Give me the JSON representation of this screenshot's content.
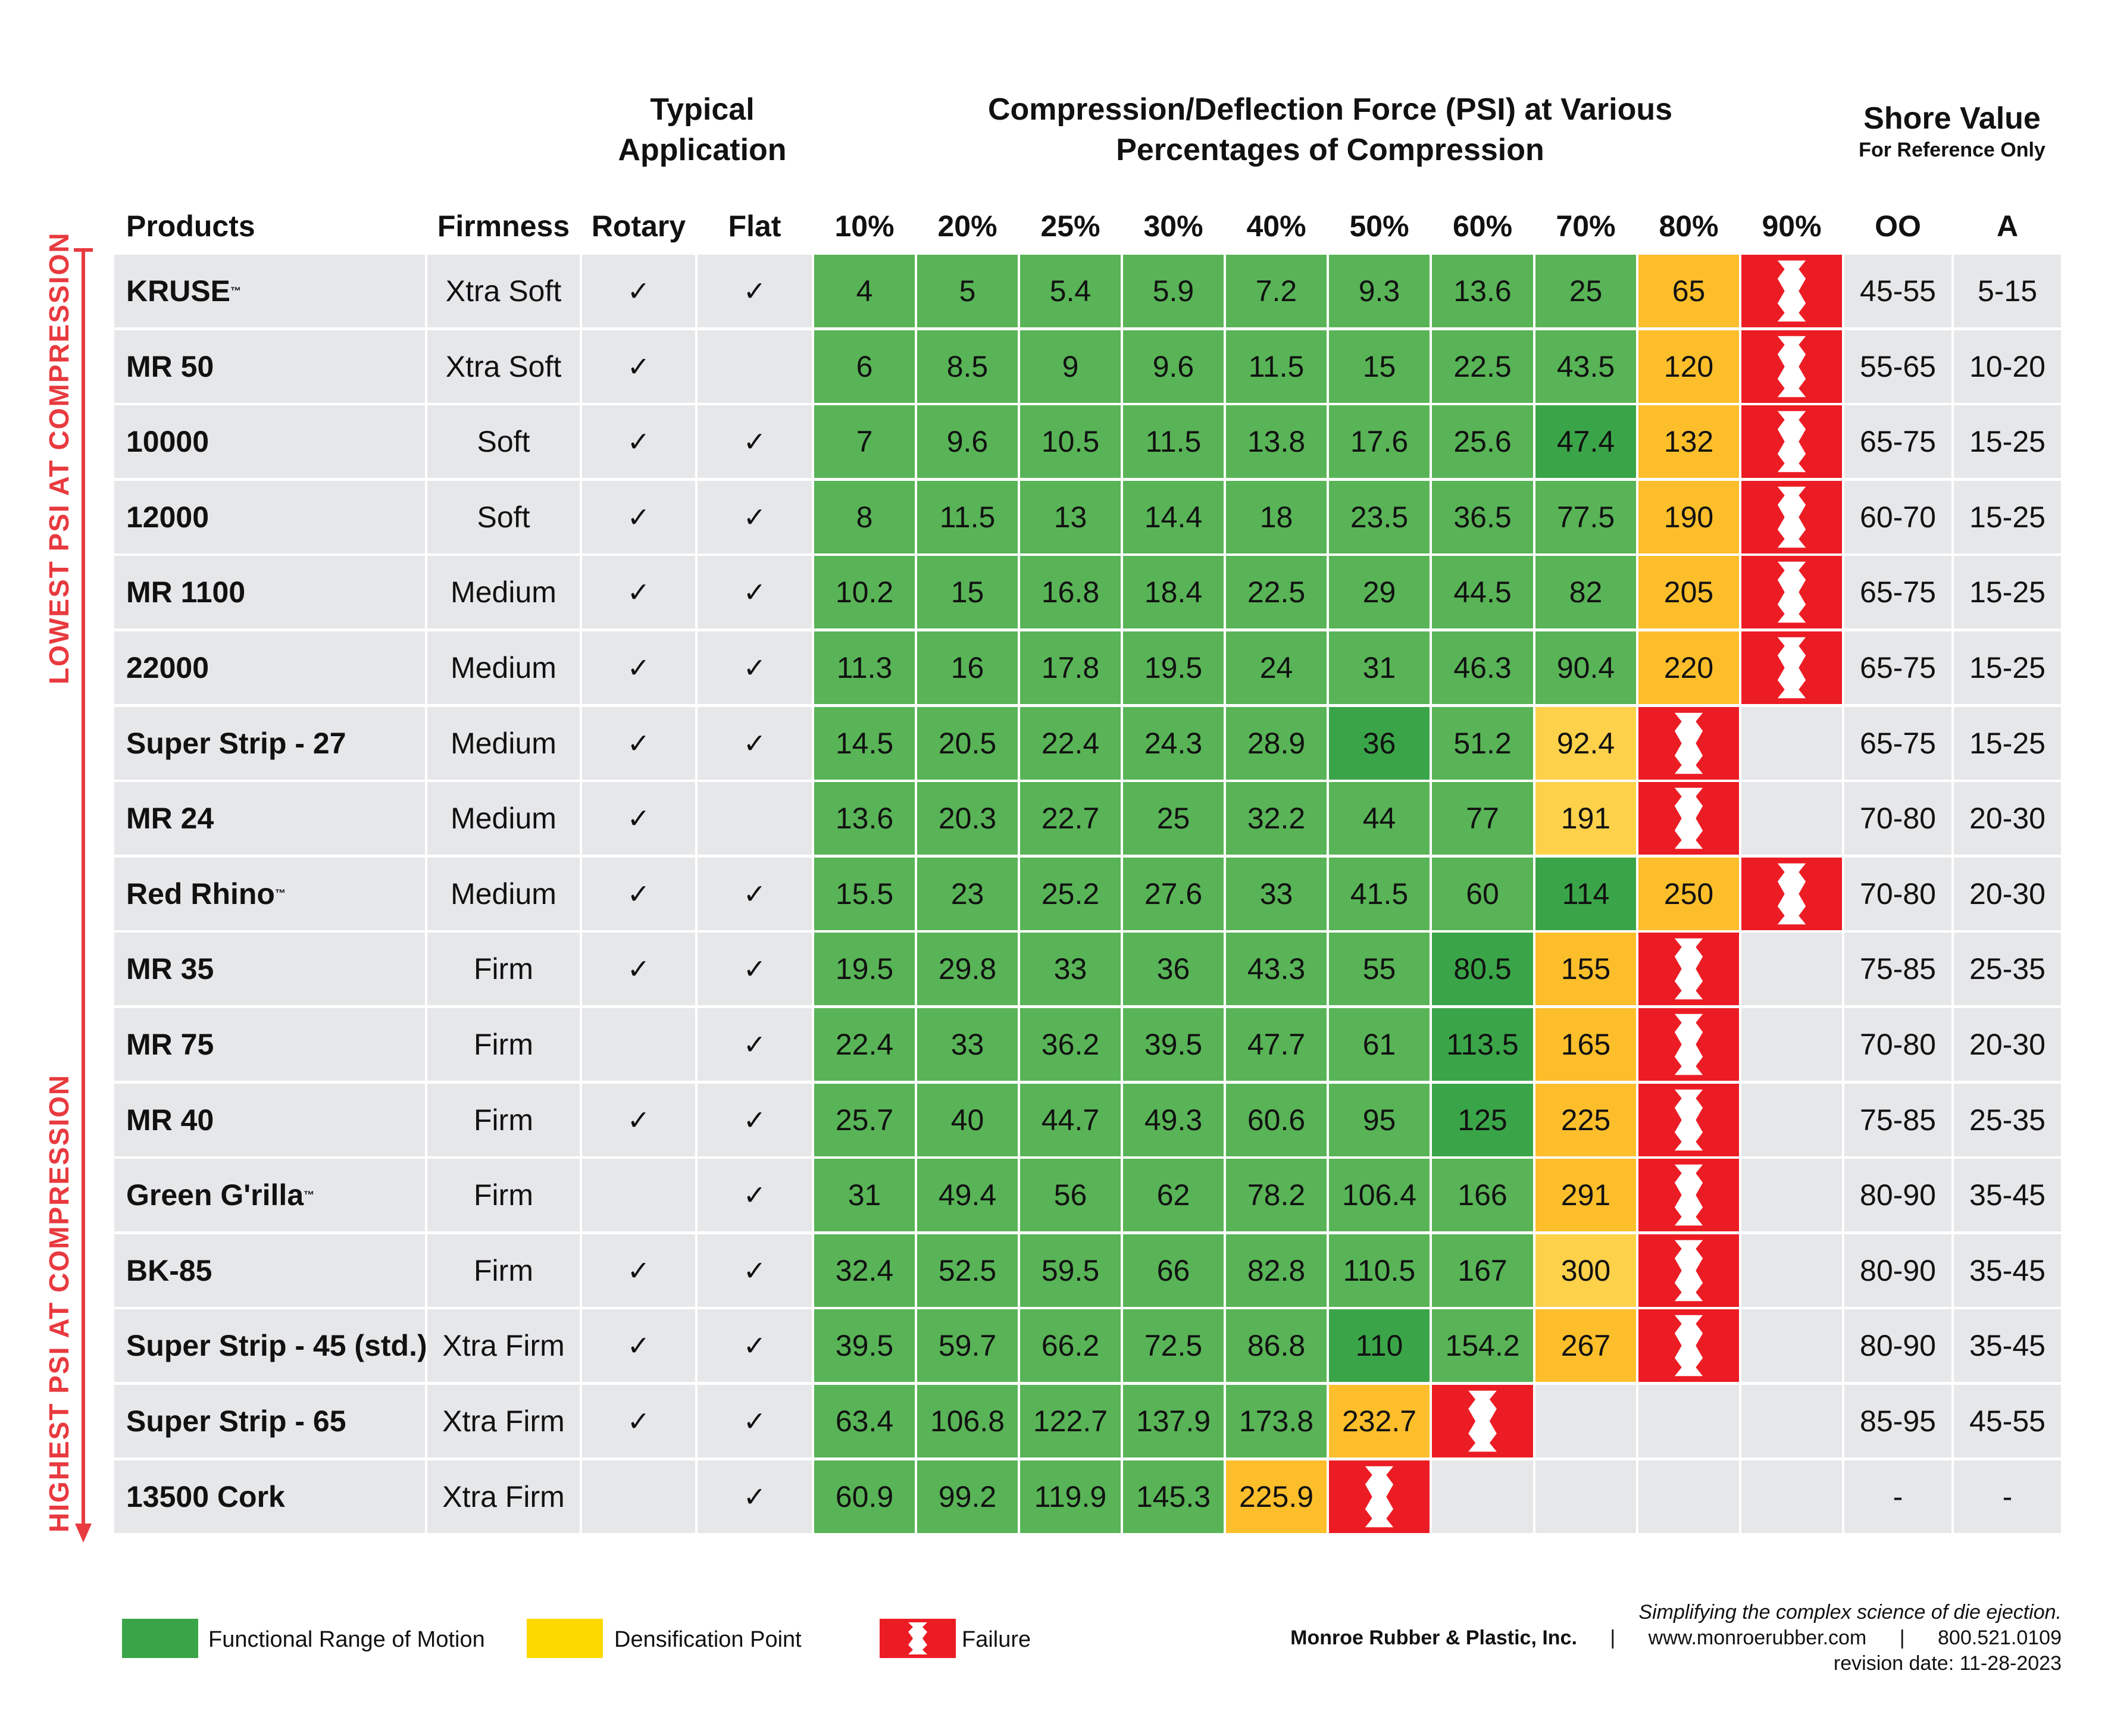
{
  "header": {
    "typical_application": [
      "Typical",
      "Application"
    ],
    "compression_title": [
      "Compression/Deflection Force (PSI) at Various",
      "Percentages of Compression"
    ],
    "shore_title": "Shore Value",
    "shore_subtitle": "For Reference Only"
  },
  "columns": [
    "Products",
    "Firmness",
    "Rotary",
    "Flat",
    "10%",
    "20%",
    "25%",
    "30%",
    "40%",
    "50%",
    "60%",
    "70%",
    "80%",
    "90%",
    "OO",
    "A"
  ],
  "side_labels": {
    "top": "LOWEST PSI AT COMPRESSION",
    "bottom": "HIGHEST PSI AT COMPRESSION"
  },
  "check_symbol": "✓",
  "rows": [
    {
      "name": "KRUSE",
      "tm": "™",
      "firmness": "Xtra Soft",
      "rotary": true,
      "flat": true,
      "values": [
        "4",
        "5",
        "5.4",
        "5.9",
        "7.2",
        "9.3",
        "13.6",
        "25",
        "65",
        ""
      ],
      "status": [
        "g",
        "g",
        "g",
        "g",
        "g",
        "g",
        "g",
        "g",
        "y",
        "f"
      ],
      "oo": "45-55",
      "a": "5-15"
    },
    {
      "name": "MR 50",
      "tm": "",
      "firmness": "Xtra Soft",
      "rotary": true,
      "flat": false,
      "values": [
        "6",
        "8.5",
        "9",
        "9.6",
        "11.5",
        "15",
        "22.5",
        "43.5",
        "120",
        ""
      ],
      "status": [
        "g",
        "g",
        "g",
        "g",
        "g",
        "g",
        "g",
        "g",
        "y",
        "f"
      ],
      "oo": "55-65",
      "a": "10-20"
    },
    {
      "name": "10000",
      "tm": "",
      "firmness": "Soft",
      "rotary": true,
      "flat": true,
      "values": [
        "7",
        "9.6",
        "10.5",
        "11.5",
        "13.8",
        "17.6",
        "25.6",
        "47.4",
        "132",
        ""
      ],
      "status": [
        "g",
        "g",
        "g",
        "g",
        "g",
        "g",
        "g",
        "G",
        "y",
        "f"
      ],
      "oo": "65-75",
      "a": "15-25"
    },
    {
      "name": "12000",
      "tm": "",
      "firmness": "Soft",
      "rotary": true,
      "flat": true,
      "values": [
        "8",
        "11.5",
        "13",
        "14.4",
        "18",
        "23.5",
        "36.5",
        "77.5",
        "190",
        ""
      ],
      "status": [
        "g",
        "g",
        "g",
        "g",
        "g",
        "g",
        "g",
        "g",
        "y",
        "f"
      ],
      "oo": "60-70",
      "a": "15-25"
    },
    {
      "name": "MR 1100",
      "tm": "",
      "firmness": "Medium",
      "rotary": true,
      "flat": true,
      "values": [
        "10.2",
        "15",
        "16.8",
        "18.4",
        "22.5",
        "29",
        "44.5",
        "82",
        "205",
        ""
      ],
      "status": [
        "g",
        "g",
        "g",
        "g",
        "g",
        "g",
        "g",
        "g",
        "y",
        "f"
      ],
      "oo": "65-75",
      "a": "15-25"
    },
    {
      "name": "22000",
      "tm": "",
      "firmness": "Medium",
      "rotary": true,
      "flat": true,
      "values": [
        "11.3",
        "16",
        "17.8",
        "19.5",
        "24",
        "31",
        "46.3",
        "90.4",
        "220",
        ""
      ],
      "status": [
        "g",
        "g",
        "g",
        "g",
        "g",
        "g",
        "g",
        "g",
        "y",
        "f"
      ],
      "oo": "65-75",
      "a": "15-25"
    },
    {
      "name": "Super Strip - 27",
      "tm": "",
      "firmness": "Medium",
      "rotary": true,
      "flat": true,
      "values": [
        "14.5",
        "20.5",
        "22.4",
        "24.3",
        "28.9",
        "36",
        "51.2",
        "92.4",
        "",
        ""
      ],
      "status": [
        "g",
        "g",
        "g",
        "g",
        "g",
        "G",
        "g",
        "Y",
        "f",
        "n"
      ],
      "oo": "65-75",
      "a": "15-25"
    },
    {
      "name": "MR 24",
      "tm": "",
      "firmness": "Medium",
      "rotary": true,
      "flat": false,
      "values": [
        "13.6",
        "20.3",
        "22.7",
        "25",
        "32.2",
        "44",
        "77",
        "191",
        "",
        ""
      ],
      "status": [
        "g",
        "g",
        "g",
        "g",
        "g",
        "g",
        "g",
        "Y",
        "f",
        "n"
      ],
      "oo": "70-80",
      "a": "20-30"
    },
    {
      "name": "Red Rhino",
      "tm": "™",
      "firmness": "Medium",
      "rotary": true,
      "flat": true,
      "values": [
        "15.5",
        "23",
        "25.2",
        "27.6",
        "33",
        "41.5",
        "60",
        "114",
        "250",
        ""
      ],
      "status": [
        "g",
        "g",
        "g",
        "g",
        "g",
        "g",
        "g",
        "G",
        "y",
        "f"
      ],
      "oo": "70-80",
      "a": "20-30"
    },
    {
      "name": "MR 35",
      "tm": "",
      "firmness": "Firm",
      "rotary": true,
      "flat": true,
      "values": [
        "19.5",
        "29.8",
        "33",
        "36",
        "43.3",
        "55",
        "80.5",
        "155",
        "",
        ""
      ],
      "status": [
        "g",
        "g",
        "g",
        "g",
        "g",
        "g",
        "G",
        "y",
        "f",
        "n"
      ],
      "oo": "75-85",
      "a": "25-35"
    },
    {
      "name": "MR 75",
      "tm": "",
      "firmness": "Firm",
      "rotary": false,
      "flat": true,
      "values": [
        "22.4",
        "33",
        "36.2",
        "39.5",
        "47.7",
        "61",
        "113.5",
        "165",
        "",
        ""
      ],
      "status": [
        "g",
        "g",
        "g",
        "g",
        "g",
        "g",
        "G",
        "y",
        "f",
        "n"
      ],
      "oo": "70-80",
      "a": "20-30"
    },
    {
      "name": "MR 40",
      "tm": "",
      "firmness": "Firm",
      "rotary": true,
      "flat": true,
      "values": [
        "25.7",
        "40",
        "44.7",
        "49.3",
        "60.6",
        "95",
        "125",
        "225",
        "",
        ""
      ],
      "status": [
        "g",
        "g",
        "g",
        "g",
        "g",
        "g",
        "G",
        "y",
        "f",
        "n"
      ],
      "oo": "75-85",
      "a": "25-35"
    },
    {
      "name": "Green G'rilla",
      "tm": "™",
      "firmness": "Firm",
      "rotary": false,
      "flat": true,
      "values": [
        "31",
        "49.4",
        "56",
        "62",
        "78.2",
        "106.4",
        "166",
        "291",
        "",
        ""
      ],
      "status": [
        "g",
        "g",
        "g",
        "g",
        "g",
        "g",
        "g",
        "y",
        "f",
        "n"
      ],
      "oo": "80-90",
      "a": "35-45"
    },
    {
      "name": "BK-85",
      "tm": "",
      "firmness": "Firm",
      "rotary": true,
      "flat": true,
      "values": [
        "32.4",
        "52.5",
        "59.5",
        "66",
        "82.8",
        "110.5",
        "167",
        "300",
        "",
        ""
      ],
      "status": [
        "g",
        "g",
        "g",
        "g",
        "g",
        "g",
        "g",
        "Y",
        "f",
        "n"
      ],
      "oo": "80-90",
      "a": "35-45"
    },
    {
      "name": "Super Strip - 45 (std.)",
      "tm": "",
      "firmness": "Xtra Firm",
      "rotary": true,
      "flat": true,
      "values": [
        "39.5",
        "59.7",
        "66.2",
        "72.5",
        "86.8",
        "110",
        "154.2",
        "267",
        "",
        ""
      ],
      "status": [
        "g",
        "g",
        "g",
        "g",
        "g",
        "G",
        "g",
        "y",
        "f",
        "n"
      ],
      "oo": "80-90",
      "a": "35-45"
    },
    {
      "name": "Super Strip - 65",
      "tm": "",
      "firmness": "Xtra Firm",
      "rotary": true,
      "flat": true,
      "values": [
        "63.4",
        "106.8",
        "122.7",
        "137.9",
        "173.8",
        "232.7",
        "",
        "",
        "",
        ""
      ],
      "status": [
        "g",
        "g",
        "g",
        "g",
        "g",
        "y",
        "f",
        "n",
        "n",
        "n"
      ],
      "oo": "85-95",
      "a": "45-55"
    },
    {
      "name": "13500 Cork",
      "tm": "",
      "firmness": "Xtra Firm",
      "rotary": false,
      "flat": true,
      "values": [
        "60.9",
        "99.2",
        "119.9",
        "145.3",
        "225.9",
        "",
        "",
        "",
        "",
        ""
      ],
      "status": [
        "g",
        "g",
        "g",
        "g",
        "y",
        "f",
        "n",
        "n",
        "n",
        "n"
      ],
      "oo": "-",
      "a": "-"
    }
  ],
  "legend": [
    {
      "label": "Functional Range of Motion",
      "color": "#3aa548",
      "kind": "swatch"
    },
    {
      "label": "Densification Point",
      "color": "#fdd900",
      "kind": "swatch"
    },
    {
      "label": "Failure",
      "color": "#ec1c24",
      "kind": "failure"
    }
  ],
  "footer": {
    "tagline": "Simplifying the complex science of die ejection.",
    "company": "Monroe Rubber & Plastic, Inc.",
    "separator": "|",
    "website": "www.monroerubber.com",
    "phone": "800.521.0109",
    "revision": "revision date: 11-28-2023"
  },
  "colors": {
    "functional": "#58b456",
    "functional_alt": "#3aa548",
    "densification": "#fdbe2b",
    "densification_alt": "#fdd14a",
    "failure": "#ec1c24",
    "row_bg": "#e6e7e9",
    "accent_red": "#e83a3f"
  },
  "icon": "failure-zigzag-icon"
}
